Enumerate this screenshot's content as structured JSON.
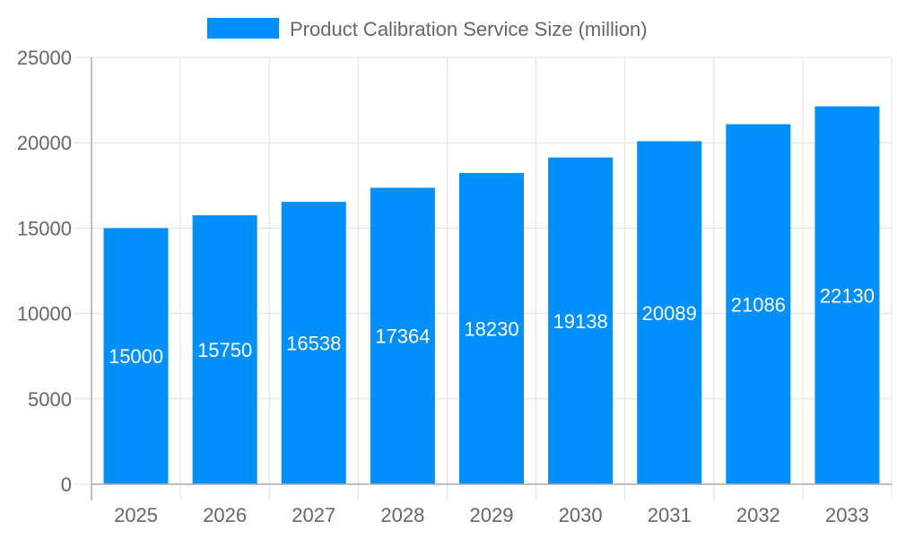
{
  "chart_data": {
    "type": "bar",
    "title": "",
    "xlabel": "",
    "ylabel": "",
    "categories": [
      "2025",
      "2026",
      "2027",
      "2028",
      "2029",
      "2030",
      "2031",
      "2032",
      "2033"
    ],
    "series": [
      {
        "name": "Product Calibration Service Size (million)",
        "values": [
          15000,
          15750,
          16538,
          17364,
          18230,
          19138,
          20089,
          21086,
          22130
        ],
        "color": "#008ffb"
      }
    ],
    "ylim": [
      0,
      25000
    ],
    "yticks": [
      "0",
      "5000",
      "10000",
      "15000",
      "20000",
      "25000"
    ],
    "grid": true,
    "legend": "top-center",
    "data_labels": true
  }
}
